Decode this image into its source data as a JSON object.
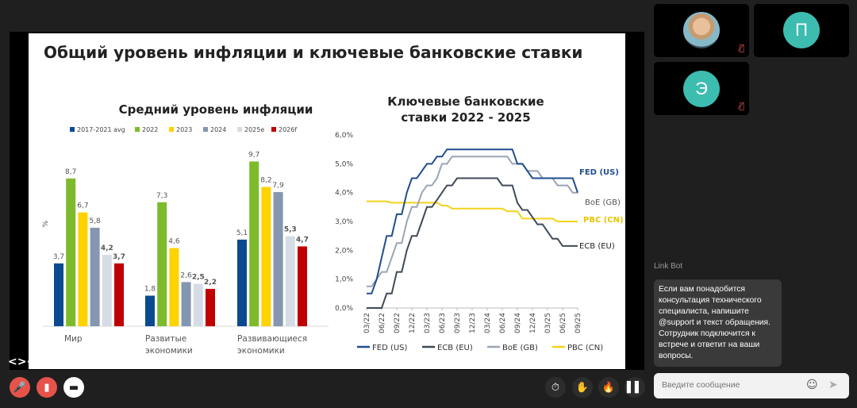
{
  "slide": {
    "title": "Общий уровень инфляции и ключевые банковские ставки"
  },
  "participants": [
    {
      "name_initial": "",
      "type": "photo",
      "muted": true
    },
    {
      "name_initial": "П",
      "type": "initial",
      "muted": false
    },
    {
      "name_initial": "Э",
      "type": "initial",
      "muted": true
    }
  ],
  "chat": {
    "sender": "Link Bot",
    "message": "Если вам понадобится консультация технического специалиста, напишите @support и текст обращения. Сотрудник подключится к встрече и ответит на ваши вопросы.",
    "input_placeholder": "Введите сообщение"
  },
  "controls": {
    "left": [
      "mic-off",
      "camera-off",
      "screen-share"
    ],
    "right": [
      "timer",
      "raise-hand",
      "reaction",
      "layout"
    ]
  },
  "colors": {
    "accent": "#3dbcb0",
    "danger": "#e5534b"
  },
  "chart_data": [
    {
      "type": "bar",
      "title": "Средний уровень инфляции",
      "ylabel": "%",
      "categories": [
        "Мир",
        "Развитые экономики",
        "Развивающиеся экономики"
      ],
      "category_lines": [
        [
          "Мир"
        ],
        [
          "Развитые",
          "экономики"
        ],
        [
          "Развивающиеся",
          "экономики"
        ]
      ],
      "legend_position": "top",
      "series": [
        {
          "name": "2017-2021 avg",
          "color": "#0b4a8f",
          "values": [
            3.7,
            1.8,
            5.1
          ],
          "bold": false
        },
        {
          "name": "2022",
          "color": "#7dbb2c",
          "values": [
            8.7,
            7.3,
            9.7
          ],
          "bold": false
        },
        {
          "name": "2023",
          "color": "#ffd200",
          "values": [
            6.7,
            4.6,
            8.2
          ],
          "bold": false
        },
        {
          "name": "2024",
          "color": "#8496b0",
          "values": [
            5.8,
            2.6,
            7.9
          ],
          "bold": false
        },
        {
          "name": "2025e",
          "color": "#d6dce5",
          "values": [
            4.2,
            2.5,
            5.3
          ],
          "bold": true
        },
        {
          "name": "2026f",
          "color": "#c00000",
          "values": [
            3.7,
            2.2,
            4.7
          ],
          "bold": true
        }
      ],
      "value_labels": [
        [
          "3,7",
          "1,8",
          "5,1"
        ],
        [
          "8,7",
          "7,3",
          "9,7"
        ],
        [
          "6,7",
          "4,6",
          "8,2"
        ],
        [
          "5,8",
          "2,6",
          "7,9"
        ],
        [
          "4,2",
          "2,5",
          "5,3"
        ],
        [
          "3,7",
          "2,2",
          "4,7"
        ]
      ],
      "grid": false
    },
    {
      "type": "line",
      "title": [
        "Ключевые банковские",
        "ставки 2022 - 2025"
      ],
      "ylim": [
        0,
        6
      ],
      "yticks": [
        "0,0%",
        "1,0%",
        "2,0%",
        "3,0%",
        "4,0%",
        "5,0%",
        "6,0%"
      ],
      "xticks": [
        "03/22",
        "06/22",
        "09/22",
        "12/22",
        "03/23",
        "06/23",
        "09/23",
        "12/23",
        "03/24",
        "06/24",
        "09/24",
        "12/24",
        "03/25",
        "06/25",
        "09/25"
      ],
      "x_start": "03/22",
      "x_end": "09/25",
      "x_step": "month",
      "grid": false,
      "legend_position": "bottom",
      "series": [
        {
          "name": "FED (US)",
          "color": "#1f4e8c",
          "label_color": "#1f4e8c",
          "values": [
            0.5,
            0.5,
            1.0,
            1.75,
            2.5,
            2.5,
            3.25,
            3.25,
            4.0,
            4.5,
            4.5,
            4.75,
            5.0,
            5.0,
            5.25,
            5.25,
            5.5,
            5.5,
            5.5,
            5.5,
            5.5,
            5.5,
            5.5,
            5.5,
            5.5,
            5.5,
            5.5,
            5.5,
            5.5,
            5.5,
            5.0,
            5.0,
            4.75,
            4.5,
            4.5,
            4.5,
            4.5,
            4.5,
            4.5,
            4.5,
            4.5,
            4.5,
            4.0
          ]
        },
        {
          "name": "ECB (EU)",
          "color": "#3f4a57",
          "label_color": "#222222",
          "values": [
            0,
            0,
            0,
            0,
            0.5,
            0.5,
            1.25,
            1.25,
            2.0,
            2.5,
            2.5,
            3.0,
            3.5,
            3.5,
            3.75,
            4.0,
            4.25,
            4.25,
            4.5,
            4.5,
            4.5,
            4.5,
            4.5,
            4.5,
            4.5,
            4.5,
            4.5,
            4.25,
            4.25,
            4.25,
            3.65,
            3.4,
            3.4,
            3.15,
            2.9,
            2.9,
            2.65,
            2.4,
            2.4,
            2.15,
            2.15,
            2.15,
            2.15
          ]
        },
        {
          "name": "BoE (GB)",
          "color": "#9aa5b4",
          "label_color": "#555555",
          "values": [
            0.75,
            0.75,
            1.0,
            1.25,
            1.25,
            1.75,
            2.25,
            2.25,
            3.0,
            3.5,
            3.5,
            4.0,
            4.25,
            4.25,
            4.5,
            5.0,
            5.0,
            5.25,
            5.25,
            5.25,
            5.25,
            5.25,
            5.25,
            5.25,
            5.25,
            5.25,
            5.25,
            5.25,
            5.25,
            5.0,
            5.0,
            5.0,
            4.75,
            4.75,
            4.75,
            4.5,
            4.5,
            4.5,
            4.25,
            4.25,
            4.25,
            4.0,
            4.0
          ]
        },
        {
          "name": "PBC (CN)",
          "color": "#f2d21b",
          "label_color": "#e8c400",
          "values": [
            3.7,
            3.7,
            3.7,
            3.7,
            3.7,
            3.65,
            3.65,
            3.65,
            3.65,
            3.65,
            3.65,
            3.65,
            3.65,
            3.65,
            3.65,
            3.55,
            3.55,
            3.45,
            3.45,
            3.45,
            3.45,
            3.45,
            3.45,
            3.45,
            3.45,
            3.45,
            3.45,
            3.45,
            3.35,
            3.35,
            3.35,
            3.1,
            3.1,
            3.1,
            3.1,
            3.1,
            3.1,
            3.1,
            3.0,
            3.0,
            3.0,
            3.0,
            3.0
          ]
        }
      ]
    }
  ]
}
